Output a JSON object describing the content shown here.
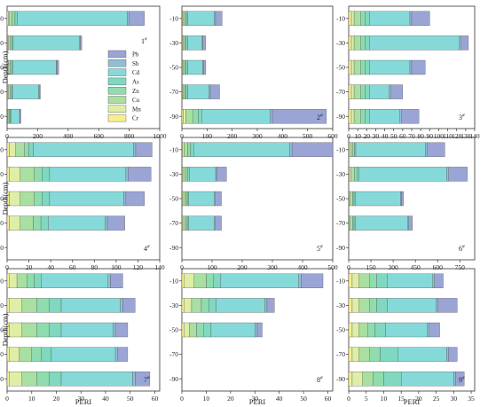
{
  "chart_data": {
    "type": "bar",
    "orientation": "horizontal",
    "stacked": true,
    "ylabel": "Depth(cm)",
    "xlabel": "PERI",
    "categories": [
      "-10",
      "-30",
      "-50",
      "-70",
      "-90"
    ],
    "components": [
      "Cr",
      "Mn",
      "Cu",
      "Zn",
      "As",
      "Cd",
      "Sb",
      "Pb"
    ],
    "legend_order": [
      "Pb",
      "Sb",
      "Cd",
      "As",
      "Zn",
      "Cu",
      "Mn",
      "Cr"
    ],
    "colors": {
      "Cr": "#f7ef8f",
      "Mn": "#dfeea6",
      "Cu": "#a9dfa0",
      "Zn": "#8fdcae",
      "As": "#7fd8bf",
      "Cd": "#86d9d9",
      "Sb": "#8fbfd7",
      "Pb": "#9aa5d6"
    },
    "panels": [
      {
        "label": "1#",
        "label_sup": "#",
        "label_main": "1",
        "xticks": [
          0,
          200,
          400,
          600,
          800,
          1000
        ],
        "xlim": [
          0,
          1000
        ],
        "legend": true,
        "rows": [
          {
            "depth": "-10",
            "values": {
              "Cr": 8,
              "Mn": 8,
              "Cu": 18,
              "Zn": 18,
              "As": 14,
              "Cd": 722,
              "Sb": 12,
              "Pb": 100
            }
          },
          {
            "depth": "-30",
            "values": {
              "Cr": 5,
              "Mn": 5,
              "Cu": 12,
              "Zn": 12,
              "As": 6,
              "Cd": 435,
              "Sb": 4,
              "Pb": 10
            }
          },
          {
            "depth": "-50",
            "values": {
              "Cr": 5,
              "Mn": 5,
              "Cu": 10,
              "Zn": 10,
              "As": 6,
              "Cd": 286,
              "Sb": 4,
              "Pb": 12
            }
          },
          {
            "depth": "-70",
            "values": {
              "Cr": 5,
              "Mn": 5,
              "Cu": 10,
              "Zn": 10,
              "As": 5,
              "Cd": 172,
              "Sb": 3,
              "Pb": 8
            }
          },
          {
            "depth": "-90",
            "values": {
              "Cr": 3,
              "Mn": 3,
              "Cu": 8,
              "Zn": 8,
              "As": 5,
              "Cd": 55,
              "Sb": 2,
              "Pb": 6
            }
          }
        ]
      },
      {
        "label": "2#",
        "label_sup": "#",
        "label_main": "2",
        "xticks": [
          0,
          100,
          200,
          300,
          400,
          500,
          600
        ],
        "xlim": [
          0,
          600
        ],
        "rows": [
          {
            "depth": "-10",
            "values": {
              "Cr": 3,
              "Mn": 3,
              "Cu": 6,
              "Zn": 6,
              "As": 6,
              "Cd": 106,
              "Sb": 4,
              "Pb": 26
            }
          },
          {
            "depth": "-30",
            "values": {
              "Cr": 3,
              "Mn": 3,
              "Cu": 5,
              "Zn": 6,
              "As": 6,
              "Cd": 58,
              "Sb": 3,
              "Pb": 11
            }
          },
          {
            "depth": "-50",
            "values": {
              "Cr": 3,
              "Mn": 3,
              "Cu": 5,
              "Zn": 6,
              "As": 6,
              "Cd": 60,
              "Sb": 3,
              "Pb": 9
            }
          },
          {
            "depth": "-70",
            "values": {
              "Cr": 3,
              "Mn": 3,
              "Cu": 5,
              "Zn": 6,
              "As": 6,
              "Cd": 86,
              "Sb": 4,
              "Pb": 37
            }
          },
          {
            "depth": "-90",
            "values": {
              "Cr": 5,
              "Mn": 10,
              "Cu": 30,
              "Zn": 20,
              "As": 15,
              "Cd": 270,
              "Sb": 10,
              "Pb": 215
            }
          }
        ]
      },
      {
        "label": "3#",
        "label_sup": "#",
        "label_main": "3",
        "xticks": [
          0,
          10,
          20,
          30,
          40,
          50,
          60,
          70,
          80,
          90,
          100,
          110,
          120,
          130,
          140
        ],
        "xlim": [
          0,
          140
        ],
        "rows": [
          {
            "depth": "-10",
            "values": {
              "Cr": 3,
              "Mn": 3,
              "Cu": 7,
              "Zn": 5,
              "As": 5,
              "Cd": 45,
              "Sb": 2,
              "Pb": 20
            }
          },
          {
            "depth": "-30",
            "values": {
              "Cr": 3,
              "Mn": 3,
              "Cu": 7,
              "Zn": 5,
              "As": 5,
              "Cd": 100,
              "Sb": 2,
              "Pb": 8
            }
          },
          {
            "depth": "-50",
            "values": {
              "Cr": 3,
              "Mn": 3,
              "Cu": 7,
              "Zn": 5,
              "As": 5,
              "Cd": 45,
              "Sb": 2,
              "Pb": 15
            }
          },
          {
            "depth": "-70",
            "values": {
              "Cr": 3,
              "Mn": 3,
              "Cu": 7,
              "Zn": 5,
              "As": 5,
              "Cd": 22,
              "Sb": 2,
              "Pb": 13
            }
          },
          {
            "depth": "-90",
            "values": {
              "Cr": 3,
              "Mn": 3,
              "Cu": 7,
              "Zn": 5,
              "As": 5,
              "Cd": 34,
              "Sb": 2,
              "Pb": 19
            }
          }
        ]
      },
      {
        "label": "4#",
        "label_sup": "#",
        "label_main": "4",
        "xticks": [
          0,
          20,
          40,
          60,
          80,
          100,
          120,
          140
        ],
        "xlim": [
          0,
          140
        ],
        "rows": [
          {
            "depth": "-10",
            "values": {
              "Cr": 2,
              "Mn": 6,
              "Cu": 8,
              "Zn": 4,
              "As": 4,
              "Cd": 92,
              "Sb": 2,
              "Pb": 15
            }
          },
          {
            "depth": "-30",
            "values": {
              "Cr": 2,
              "Mn": 10,
              "Cu": 13,
              "Zn": 7,
              "As": 7,
              "Cd": 70,
              "Sb": 2,
              "Pb": 21
            }
          },
          {
            "depth": "-50",
            "values": {
              "Cr": 2,
              "Mn": 10,
              "Cu": 13,
              "Zn": 7,
              "As": 7,
              "Cd": 68,
              "Sb": 2,
              "Pb": 17
            }
          },
          {
            "depth": "-70",
            "values": {
              "Cr": 2,
              "Mn": 10,
              "Cu": 12,
              "Zn": 7,
              "As": 7,
              "Cd": 52,
              "Sb": 2,
              "Pb": 16
            }
          }
        ]
      },
      {
        "label": "5#",
        "label_sup": "#",
        "label_main": "5",
        "xticks": [
          0,
          100,
          200,
          300,
          400,
          500
        ],
        "xlim": [
          0,
          500
        ],
        "rows": [
          {
            "depth": "-10",
            "values": {
              "Cr": 2,
              "Mn": 5,
              "Cu": 12,
              "Zn": 10,
              "As": 10,
              "Cd": 318,
              "Sb": 8,
              "Pb": 135
            }
          },
          {
            "depth": "-30",
            "values": {
              "Cr": 2,
              "Mn": 4,
              "Cu": 8,
              "Zn": 6,
              "As": 6,
              "Cd": 86,
              "Sb": 3,
              "Pb": 33
            }
          },
          {
            "depth": "-50",
            "values": {
              "Cr": 2,
              "Mn": 4,
              "Cu": 7,
              "Zn": 5,
              "As": 5,
              "Cd": 85,
              "Sb": 3,
              "Pb": 20
            }
          },
          {
            "depth": "-70",
            "values": {
              "Cr": 2,
              "Mn": 4,
              "Cu": 7,
              "Zn": 5,
              "As": 5,
              "Cd": 85,
              "Sb": 3,
              "Pb": 20
            }
          }
        ]
      },
      {
        "label": "6#",
        "label_sup": "#",
        "label_main": "6",
        "xticks": [
          0,
          150,
          300,
          450,
          600,
          750
        ],
        "xlim": [
          0,
          850
        ],
        "rows": [
          {
            "depth": "-10",
            "values": {
              "Cr": 3,
              "Mn": 10,
              "Cu": 15,
              "Zn": 10,
              "As": 10,
              "Cd": 470,
              "Sb": 10,
              "Pb": 120
            }
          },
          {
            "depth": "-30",
            "values": {
              "Cr": 3,
              "Mn": 10,
              "Cu": 25,
              "Zn": 20,
              "As": 12,
              "Cd": 590,
              "Sb": 15,
              "Pb": 125
            }
          },
          {
            "depth": "-50",
            "values": {
              "Cr": 3,
              "Mn": 8,
              "Cu": 15,
              "Zn": 10,
              "As": 8,
              "Cd": 306,
              "Sb": 5,
              "Pb": 15
            }
          },
          {
            "depth": "-70",
            "values": {
              "Cr": 3,
              "Mn": 8,
              "Cu": 15,
              "Zn": 10,
              "As": 8,
              "Cd": 356,
              "Sb": 5,
              "Pb": 25
            }
          }
        ]
      },
      {
        "label": "7#",
        "label_sup": "#",
        "label_main": "7",
        "xticks": [
          0,
          10,
          20,
          30,
          40,
          50,
          60
        ],
        "xlim": [
          0,
          62
        ],
        "rows": [
          {
            "depth": "-10",
            "values": {
              "Cr": 1,
              "Mn": 3,
              "Cu": 4,
              "Zn": 3,
              "As": 3,
              "Cd": 27,
              "Sb": 1,
              "Pb": 5
            }
          },
          {
            "depth": "-30",
            "values": {
              "Cr": 1,
              "Mn": 5,
              "Cu": 6,
              "Zn": 5,
              "As": 5,
              "Cd": 24,
              "Sb": 1,
              "Pb": 5
            }
          },
          {
            "depth": "-50",
            "values": {
              "Cr": 1,
              "Mn": 5,
              "Cu": 6,
              "Zn": 5,
              "As": 5,
              "Cd": 21,
              "Sb": 1,
              "Pb": 5
            }
          },
          {
            "depth": "-70",
            "values": {
              "Cr": 1,
              "Mn": 4,
              "Cu": 5,
              "Zn": 4,
              "As": 4,
              "Cd": 26,
              "Sb": 1,
              "Pb": 4
            }
          },
          {
            "depth": "-90",
            "values": {
              "Cr": 1,
              "Mn": 5,
              "Cu": 6,
              "Zn": 5,
              "As": 5,
              "Cd": 29,
              "Sb": 1,
              "Pb": 6
            }
          }
        ]
      },
      {
        "label": "8#",
        "label_sup": "#",
        "label_main": "8",
        "xticks": [
          0,
          10,
          20,
          30,
          40,
          50,
          60
        ],
        "xlim": [
          0,
          62
        ],
        "rows": [
          {
            "depth": "-10",
            "values": {
              "Cr": 1,
              "Mn": 4,
              "Cu": 5,
              "Zn": 3,
              "As": 3,
              "Cd": 32,
              "Sb": 1,
              "Pb": 9
            }
          },
          {
            "depth": "-30",
            "values": {
              "Cr": 1,
              "Mn": 3,
              "Cu": 4,
              "Zn": 3,
              "As": 3,
              "Cd": 20,
              "Sb": 1,
              "Pb": 3
            }
          },
          {
            "depth": "-50",
            "values": {
              "Cr": 1,
              "Mn": 2,
              "Cu": 3,
              "Zn": 3,
              "As": 3,
              "Cd": 18,
              "Sb": 1,
              "Pb": 2
            }
          }
        ]
      },
      {
        "label": "9#",
        "label_sup": "#",
        "label_main": "9",
        "xticks": [
          0,
          5,
          10,
          15,
          20,
          25,
          30,
          35
        ],
        "xlim": [
          0,
          36
        ],
        "rows": [
          {
            "depth": "-10",
            "values": {
              "Cr": 1,
              "Mn": 2,
              "Cu": 3,
              "Zn": 2,
              "As": 3,
              "Cd": 13,
              "Sb": 0.5,
              "Pb": 2.5
            }
          },
          {
            "depth": "-30",
            "values": {
              "Cr": 1,
              "Mn": 2,
              "Cu": 3,
              "Zn": 2,
              "As": 3,
              "Cd": 14,
              "Sb": 0.5,
              "Pb": 5.5
            }
          },
          {
            "depth": "-50",
            "values": {
              "Cr": 1,
              "Mn": 2,
              "Cu": 2.5,
              "Zn": 2,
              "As": 3,
              "Cd": 12,
              "Sb": 0.5,
              "Pb": 3
            }
          },
          {
            "depth": "-70",
            "values": {
              "Cr": 1,
              "Mn": 2,
              "Cu": 3,
              "Zn": 3,
              "As": 5,
              "Cd": 14,
              "Sb": 0.5,
              "Pb": 2.5
            }
          },
          {
            "depth": "-90",
            "values": {
              "Cr": 1,
              "Mn": 3,
              "Cu": 3,
              "Zn": 3,
              "As": 5,
              "Cd": 15,
              "Sb": 0.5,
              "Pb": 2.5
            }
          }
        ]
      }
    ]
  }
}
